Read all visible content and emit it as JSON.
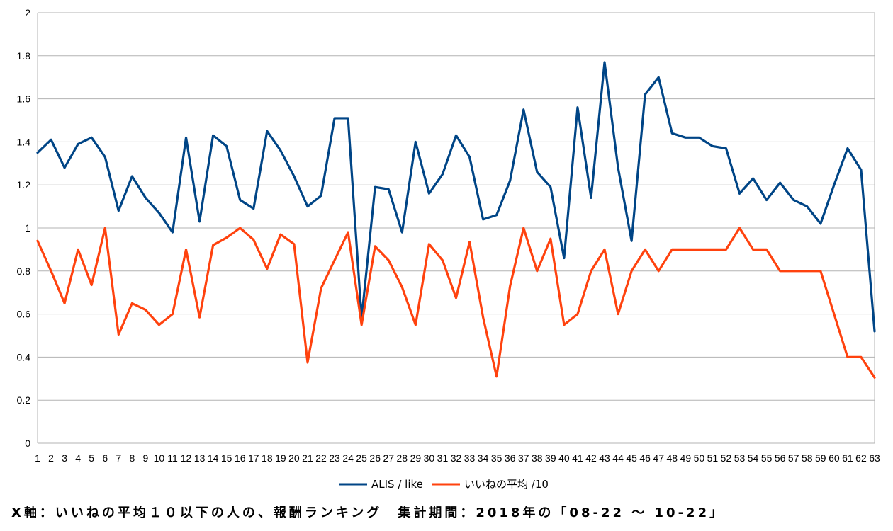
{
  "chart_data": {
    "type": "line",
    "title": "",
    "xlabel": "X軸：いいねの平均１０以下の人の、報酬ランキング　集計期間：2018年の「08-22 ～ 10-22」",
    "ylabel": "",
    "ylim": [
      0,
      2
    ],
    "yticks": [
      "0",
      "0.2",
      "0.4",
      "0.6",
      "0.8",
      "1",
      "1.2",
      "1.4",
      "1.6",
      "1.8",
      "2"
    ],
    "ytick_values": [
      0,
      0.2,
      0.4,
      0.6,
      0.8,
      1.0,
      1.2,
      1.4,
      1.6,
      1.8,
      2.0
    ],
    "grid": true,
    "legend_position": "bottom",
    "x": [
      "1",
      "2",
      "3",
      "4",
      "5",
      "6",
      "7",
      "8",
      "9",
      "10",
      "11",
      "12",
      "13",
      "14",
      "15",
      "16",
      "17",
      "18",
      "19",
      "20",
      "21",
      "22",
      "23",
      "24",
      "25",
      "26",
      "27",
      "28",
      "29",
      "30",
      "31",
      "32",
      "33",
      "34",
      "35",
      "36",
      "37",
      "38",
      "39",
      "40",
      "41",
      "42",
      "43",
      "44",
      "45",
      "46",
      "47",
      "48",
      "49",
      "50",
      "51",
      "52",
      "53",
      "54",
      "55",
      "56",
      "57",
      "58",
      "59",
      "60",
      "61",
      "62",
      "63"
    ],
    "series": [
      {
        "name": "ALIS / like",
        "color": "#004586",
        "values": [
          1.35,
          1.41,
          1.28,
          1.39,
          1.42,
          1.33,
          1.08,
          1.24,
          1.14,
          1.07,
          0.98,
          1.42,
          1.03,
          1.43,
          1.38,
          1.13,
          1.09,
          1.45,
          1.36,
          1.24,
          1.1,
          1.15,
          1.51,
          1.51,
          0.58,
          1.19,
          1.18,
          0.98,
          1.4,
          1.16,
          1.25,
          1.43,
          1.33,
          1.04,
          1.06,
          1.22,
          1.55,
          1.26,
          1.19,
          0.86,
          1.56,
          1.14,
          1.77,
          1.28,
          0.94,
          1.62,
          1.7,
          1.44,
          1.42,
          1.42,
          1.38,
          1.37,
          1.16,
          1.23,
          1.13,
          1.21,
          1.13,
          1.1,
          1.02,
          1.2,
          1.37,
          1.27,
          0.52
        ]
      },
      {
        "name": "いいねの平均 /10",
        "color": "#ff420e",
        "values": [
          0.94,
          0.8,
          0.65,
          0.9,
          0.735,
          1.0,
          0.505,
          0.65,
          0.62,
          0.55,
          0.6,
          0.9,
          0.585,
          0.92,
          0.955,
          1.0,
          0.945,
          0.81,
          0.97,
          0.925,
          0.375,
          0.72,
          0.85,
          0.98,
          0.55,
          0.915,
          0.85,
          0.725,
          0.55,
          0.925,
          0.85,
          0.675,
          0.935,
          0.585,
          0.31,
          0.73,
          1.0,
          0.8,
          0.95,
          0.55,
          0.6,
          0.8,
          0.9,
          0.6,
          0.8,
          0.9,
          0.8,
          0.9,
          0.9,
          0.9,
          0.9,
          0.9,
          1.0,
          0.9,
          0.9,
          0.8,
          0.8,
          0.8,
          0.8,
          0.6,
          0.4,
          0.4,
          0.305
        ]
      }
    ]
  }
}
